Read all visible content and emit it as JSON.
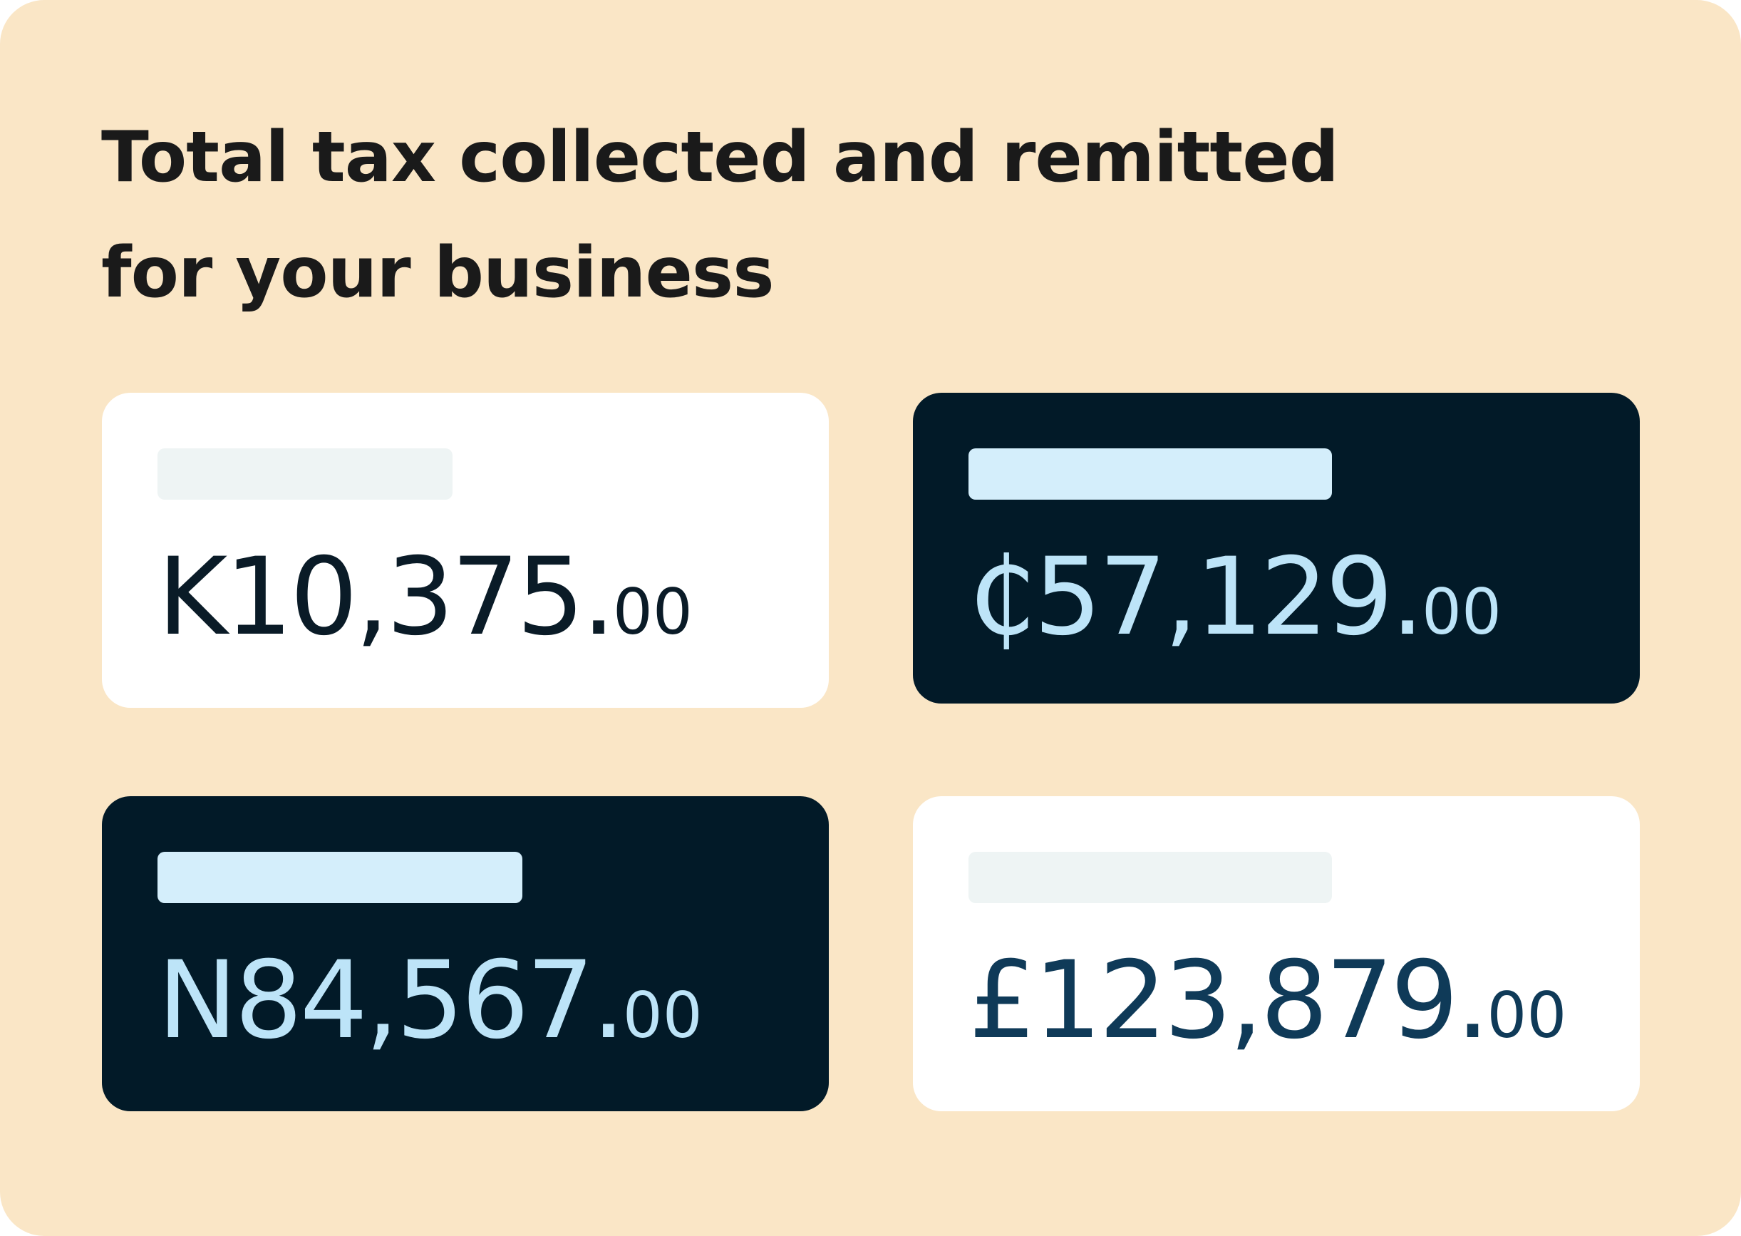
{
  "title": {
    "line1": "Total tax collected and remitted",
    "line2": "for your business"
  },
  "cards": [
    {
      "theme": "light",
      "main": "K10,375.",
      "cents": "00",
      "amount_color": "#0A1B27"
    },
    {
      "theme": "dark",
      "main": "₵57,129.",
      "cents": "00",
      "amount_color": "#BDE4F8"
    },
    {
      "theme": "dark",
      "main": "N84,567.",
      "cents": "00",
      "amount_color": "#BDE4F8"
    },
    {
      "theme": "light",
      "main": "£123,879.",
      "cents": "00",
      "amount_color": "#0F3A58"
    }
  ],
  "colors": {
    "background": "#FAE6C6",
    "dark_card": "#021A28",
    "light_card": "#FFFFFF",
    "light_label_bar": "#EEF4F4",
    "dark_label_bar": "#D4EEFB"
  }
}
